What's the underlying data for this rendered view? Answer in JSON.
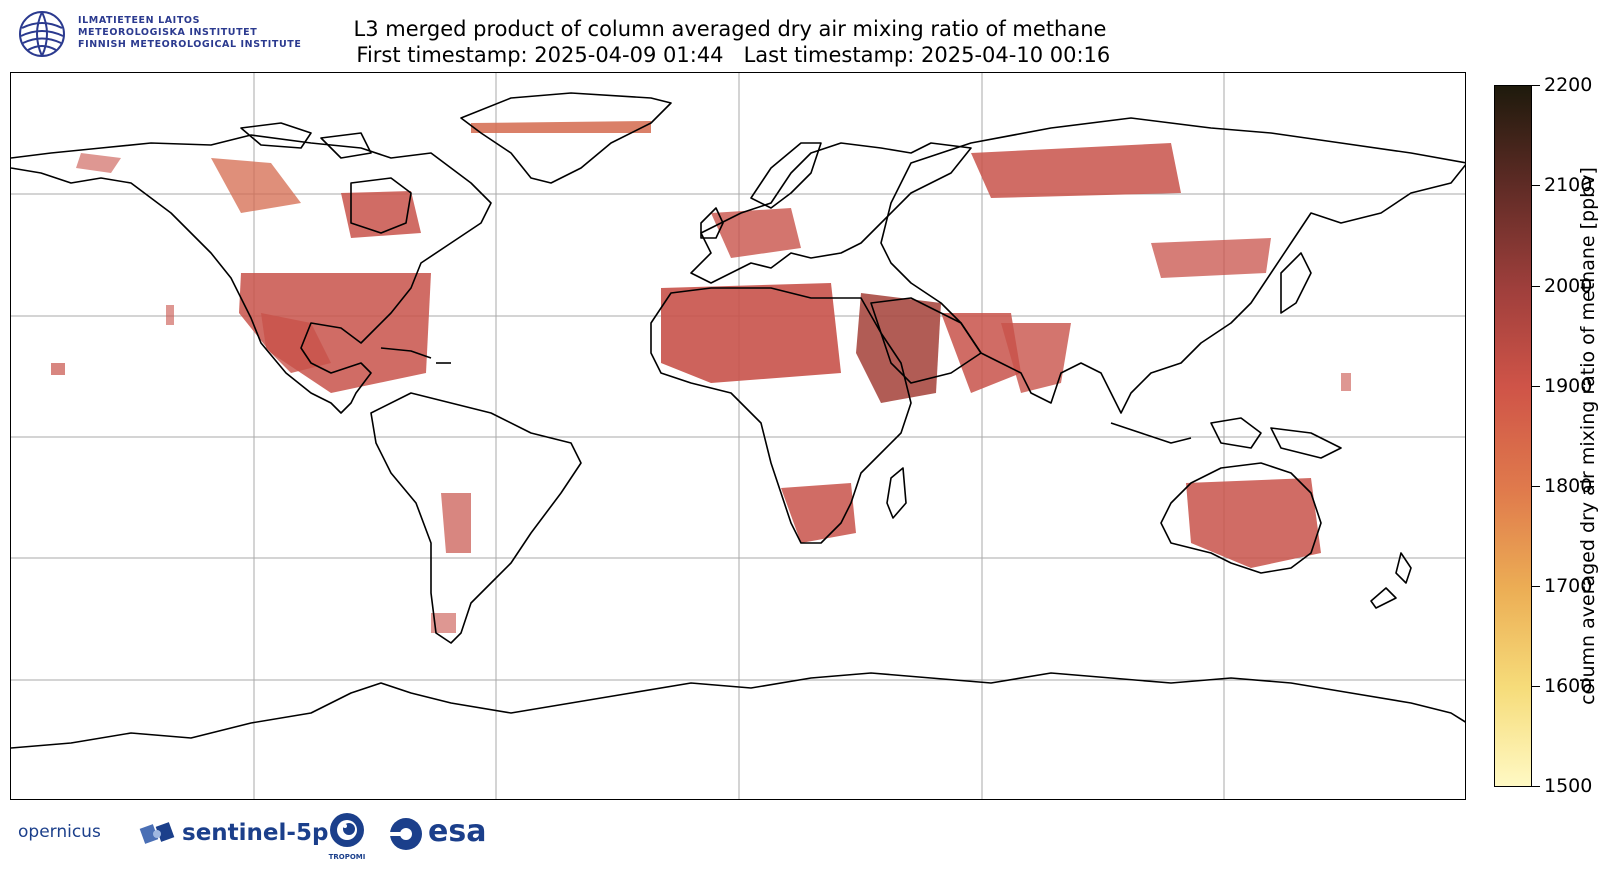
{
  "header": {
    "institute_lines": [
      "ILMATIETEEN LAITOS",
      "METEOROLOGISKA INSTITUTET",
      "FINNISH METEOROLOGICAL INSTITUTE"
    ],
    "title_line1": "L3 merged product of column averaged dry air mixing ratio of methane",
    "title_line2": " First timestamp: 2025-04-09 01:44   Last timestamp: 2025-04-10 00:16"
  },
  "colorbar": {
    "label": "column averaged dry air mixing ratio of methane [ppbv]",
    "min": 1500,
    "max": 2200,
    "ticks": [
      "2200",
      "2100",
      "2000",
      "1900",
      "1800",
      "1700",
      "1600",
      "1500"
    ],
    "colors": [
      "#fff9c4",
      "#f6dc7a",
      "#ecae55",
      "#e07b4c",
      "#cf5448",
      "#9f3f3c",
      "#5e2b25",
      "#1e1a0c"
    ]
  },
  "map": {
    "projection": "Plate Carree",
    "gridlines": true,
    "coastline_color": "#000000",
    "gridline_color": "#aaaaaa",
    "dominant_data_color": "#c8524a"
  },
  "logos": {
    "copernicus": "opernicus",
    "sentinel": "sentinel-5p",
    "tropomi": "TROPOMI",
    "esa": "esa"
  }
}
